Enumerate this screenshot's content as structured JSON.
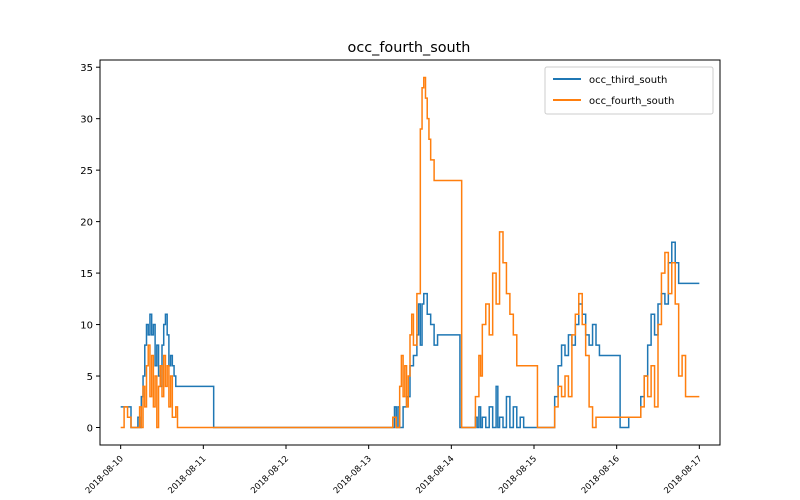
{
  "chart_data": {
    "type": "line",
    "title": "occ_fourth_south",
    "xlabel": "",
    "ylabel": "",
    "x_axis": {
      "type": "date",
      "range": [
        "2018-08-09T18:00",
        "2018-08-17T06:00"
      ],
      "ticks": [
        "2018-08-10",
        "2018-08-11",
        "2018-08-12",
        "2018-08-13",
        "2018-08-14",
        "2018-08-15",
        "2018-08-16",
        "2018-08-17"
      ]
    },
    "y_axis": {
      "range": [
        -1.7,
        35.7
      ],
      "ticks": [
        0,
        5,
        10,
        15,
        20,
        25,
        30,
        35
      ]
    },
    "grid": false,
    "legend": {
      "placement": "top-right"
    },
    "series": [
      {
        "name": "occ_third_south",
        "color": "#1f77b4",
        "points": [
          [
            "2018-08-10T00:00",
            2
          ],
          [
            "2018-08-10T02:00",
            2
          ],
          [
            "2018-08-10T03:00",
            0
          ],
          [
            "2018-08-10T04:30",
            0
          ],
          [
            "2018-08-10T05:00",
            1
          ],
          [
            "2018-08-10T05:30",
            0
          ],
          [
            "2018-08-10T06:00",
            3
          ],
          [
            "2018-08-10T06:30",
            5
          ],
          [
            "2018-08-10T07:00",
            8
          ],
          [
            "2018-08-10T07:30",
            10
          ],
          [
            "2018-08-10T08:00",
            9
          ],
          [
            "2018-08-10T08:30",
            11
          ],
          [
            "2018-08-10T09:00",
            9
          ],
          [
            "2018-08-10T09:30",
            10
          ],
          [
            "2018-08-10T10:00",
            6
          ],
          [
            "2018-08-10T10:30",
            8
          ],
          [
            "2018-08-10T11:00",
            5
          ],
          [
            "2018-08-10T11:30",
            4
          ],
          [
            "2018-08-10T12:00",
            8
          ],
          [
            "2018-08-10T12:30",
            10
          ],
          [
            "2018-08-10T13:00",
            11
          ],
          [
            "2018-08-10T13:30",
            9
          ],
          [
            "2018-08-10T14:00",
            6
          ],
          [
            "2018-08-10T14:30",
            7
          ],
          [
            "2018-08-10T15:00",
            6
          ],
          [
            "2018-08-10T15:30",
            5
          ],
          [
            "2018-08-10T16:00",
            4
          ],
          [
            "2018-08-11T03:00",
            4
          ],
          [
            "2018-08-11T03:00",
            0
          ],
          [
            "2018-08-13T07:00",
            0
          ],
          [
            "2018-08-13T07:30",
            2
          ],
          [
            "2018-08-13T08:00",
            0
          ],
          [
            "2018-08-13T08:30",
            2
          ],
          [
            "2018-08-13T09:00",
            0
          ],
          [
            "2018-08-13T10:00",
            2
          ],
          [
            "2018-08-13T11:00",
            3
          ],
          [
            "2018-08-13T12:00",
            6
          ],
          [
            "2018-08-13T13:00",
            7
          ],
          [
            "2018-08-13T14:00",
            9
          ],
          [
            "2018-08-13T14:30",
            12
          ],
          [
            "2018-08-13T15:00",
            8
          ],
          [
            "2018-08-13T15:30",
            12
          ],
          [
            "2018-08-13T16:00",
            13
          ],
          [
            "2018-08-13T17:00",
            11
          ],
          [
            "2018-08-13T18:00",
            10
          ],
          [
            "2018-08-13T19:00",
            8
          ],
          [
            "2018-08-13T20:00",
            9
          ],
          [
            "2018-08-14T02:30",
            9
          ],
          [
            "2018-08-14T02:30",
            0
          ],
          [
            "2018-08-14T06:00",
            0
          ],
          [
            "2018-08-14T07:00",
            1
          ],
          [
            "2018-08-14T07:30",
            0
          ],
          [
            "2018-08-14T08:00",
            2
          ],
          [
            "2018-08-14T08:30",
            0
          ],
          [
            "2018-08-14T09:00",
            1
          ],
          [
            "2018-08-14T10:00",
            0
          ],
          [
            "2018-08-14T11:00",
            2
          ],
          [
            "2018-08-14T12:00",
            0
          ],
          [
            "2018-08-14T13:00",
            4
          ],
          [
            "2018-08-14T13:30",
            0
          ],
          [
            "2018-08-14T14:00",
            1
          ],
          [
            "2018-08-14T15:00",
            0
          ],
          [
            "2018-08-14T16:00",
            3
          ],
          [
            "2018-08-14T17:00",
            0
          ],
          [
            "2018-08-14T18:00",
            2
          ],
          [
            "2018-08-14T19:00",
            0
          ],
          [
            "2018-08-14T20:00",
            1
          ],
          [
            "2018-08-14T21:00",
            0
          ],
          [
            "2018-08-15T05:00",
            0
          ],
          [
            "2018-08-15T06:00",
            3
          ],
          [
            "2018-08-15T07:00",
            6
          ],
          [
            "2018-08-15T08:00",
            8
          ],
          [
            "2018-08-15T09:00",
            7
          ],
          [
            "2018-08-15T10:00",
            9
          ],
          [
            "2018-08-15T11:00",
            8
          ],
          [
            "2018-08-15T12:00",
            10
          ],
          [
            "2018-08-15T13:00",
            12
          ],
          [
            "2018-08-15T14:00",
            11
          ],
          [
            "2018-08-15T15:00",
            9
          ],
          [
            "2018-08-15T16:00",
            8
          ],
          [
            "2018-08-15T17:00",
            10
          ],
          [
            "2018-08-15T18:00",
            8
          ],
          [
            "2018-08-15T19:00",
            7
          ],
          [
            "2018-08-16T01:00",
            7
          ],
          [
            "2018-08-16T01:00",
            0
          ],
          [
            "2018-08-16T03:00",
            0
          ],
          [
            "2018-08-16T03:30",
            1
          ],
          [
            "2018-08-16T06:00",
            1
          ],
          [
            "2018-08-16T07:00",
            3
          ],
          [
            "2018-08-16T08:00",
            5
          ],
          [
            "2018-08-16T09:00",
            8
          ],
          [
            "2018-08-16T10:00",
            11
          ],
          [
            "2018-08-16T11:00",
            9
          ],
          [
            "2018-08-16T12:00",
            12
          ],
          [
            "2018-08-16T13:00",
            13
          ],
          [
            "2018-08-16T14:00",
            12
          ],
          [
            "2018-08-16T15:00",
            16
          ],
          [
            "2018-08-16T16:00",
            18
          ],
          [
            "2018-08-16T17:00",
            16
          ],
          [
            "2018-08-16T18:00",
            14
          ],
          [
            "2018-08-17T00:00",
            14
          ]
        ]
      },
      {
        "name": "occ_fourth_south",
        "color": "#ff7f0e",
        "points": [
          [
            "2018-08-10T00:00",
            0
          ],
          [
            "2018-08-10T01:00",
            2
          ],
          [
            "2018-08-10T02:00",
            1
          ],
          [
            "2018-08-10T03:00",
            0
          ],
          [
            "2018-08-10T05:00",
            0
          ],
          [
            "2018-08-10T05:30",
            2
          ],
          [
            "2018-08-10T06:00",
            0
          ],
          [
            "2018-08-10T06:30",
            4
          ],
          [
            "2018-08-10T07:00",
            2
          ],
          [
            "2018-08-10T07:30",
            6
          ],
          [
            "2018-08-10T08:00",
            8
          ],
          [
            "2018-08-10T08:30",
            3
          ],
          [
            "2018-08-10T09:00",
            7
          ],
          [
            "2018-08-10T09:30",
            2
          ],
          [
            "2018-08-10T10:00",
            5
          ],
          [
            "2018-08-10T10:30",
            0
          ],
          [
            "2018-08-10T11:00",
            4
          ],
          [
            "2018-08-10T11:30",
            6
          ],
          [
            "2018-08-10T12:00",
            3
          ],
          [
            "2018-08-10T12:30",
            7
          ],
          [
            "2018-08-10T13:00",
            4
          ],
          [
            "2018-08-10T13:30",
            6
          ],
          [
            "2018-08-10T14:00",
            2
          ],
          [
            "2018-08-10T14:30",
            5
          ],
          [
            "2018-08-10T15:00",
            1
          ],
          [
            "2018-08-10T16:00",
            2
          ],
          [
            "2018-08-10T16:30",
            0
          ],
          [
            "2018-08-13T06:00",
            0
          ],
          [
            "2018-08-13T07:00",
            1
          ],
          [
            "2018-08-13T08:00",
            0
          ],
          [
            "2018-08-13T09:00",
            4
          ],
          [
            "2018-08-13T09:30",
            7
          ],
          [
            "2018-08-13T10:00",
            3
          ],
          [
            "2018-08-13T10:30",
            6
          ],
          [
            "2018-08-13T11:00",
            2
          ],
          [
            "2018-08-13T11:30",
            5
          ],
          [
            "2018-08-13T12:00",
            9
          ],
          [
            "2018-08-13T12:30",
            11
          ],
          [
            "2018-08-13T13:00",
            8
          ],
          [
            "2018-08-13T14:00",
            13
          ],
          [
            "2018-08-13T15:00",
            29
          ],
          [
            "2018-08-13T15:30",
            33
          ],
          [
            "2018-08-13T16:00",
            34
          ],
          [
            "2018-08-13T16:30",
            32
          ],
          [
            "2018-08-13T17:00",
            30
          ],
          [
            "2018-08-13T17:30",
            28
          ],
          [
            "2018-08-13T18:00",
            26
          ],
          [
            "2018-08-13T19:00",
            24
          ],
          [
            "2018-08-14T03:00",
            24
          ],
          [
            "2018-08-14T03:00",
            0
          ],
          [
            "2018-08-14T06:00",
            0
          ],
          [
            "2018-08-14T07:00",
            3
          ],
          [
            "2018-08-14T08:00",
            7
          ],
          [
            "2018-08-14T08:30",
            5
          ],
          [
            "2018-08-14T09:00",
            10
          ],
          [
            "2018-08-14T10:00",
            12
          ],
          [
            "2018-08-14T11:00",
            9
          ],
          [
            "2018-08-14T12:00",
            15
          ],
          [
            "2018-08-14T13:00",
            12
          ],
          [
            "2018-08-14T14:00",
            19
          ],
          [
            "2018-08-14T15:00",
            16
          ],
          [
            "2018-08-14T16:00",
            13
          ],
          [
            "2018-08-14T17:00",
            11
          ],
          [
            "2018-08-14T18:00",
            9
          ],
          [
            "2018-08-14T19:00",
            6
          ],
          [
            "2018-08-15T01:00",
            6
          ],
          [
            "2018-08-15T01:00",
            0
          ],
          [
            "2018-08-15T05:00",
            0
          ],
          [
            "2018-08-15T06:00",
            2
          ],
          [
            "2018-08-15T07:00",
            4
          ],
          [
            "2018-08-15T08:00",
            3
          ],
          [
            "2018-08-15T09:00",
            5
          ],
          [
            "2018-08-15T10:00",
            3
          ],
          [
            "2018-08-15T11:00",
            9
          ],
          [
            "2018-08-15T12:00",
            11
          ],
          [
            "2018-08-15T13:00",
            13
          ],
          [
            "2018-08-15T14:00",
            10
          ],
          [
            "2018-08-15T15:00",
            7
          ],
          [
            "2018-08-15T16:00",
            2
          ],
          [
            "2018-08-15T17:00",
            0
          ],
          [
            "2018-08-15T18:00",
            1
          ],
          [
            "2018-08-16T06:00",
            1
          ],
          [
            "2018-08-16T07:00",
            2
          ],
          [
            "2018-08-16T08:00",
            5
          ],
          [
            "2018-08-16T09:00",
            3
          ],
          [
            "2018-08-16T10:00",
            6
          ],
          [
            "2018-08-16T11:00",
            2
          ],
          [
            "2018-08-16T12:00",
            10
          ],
          [
            "2018-08-16T13:00",
            15
          ],
          [
            "2018-08-16T14:00",
            17
          ],
          [
            "2018-08-16T15:00",
            13
          ],
          [
            "2018-08-16T16:00",
            16
          ],
          [
            "2018-08-16T17:00",
            12
          ],
          [
            "2018-08-16T18:00",
            5
          ],
          [
            "2018-08-16T19:00",
            7
          ],
          [
            "2018-08-16T20:00",
            3
          ],
          [
            "2018-08-17T00:00",
            3
          ]
        ]
      }
    ]
  }
}
